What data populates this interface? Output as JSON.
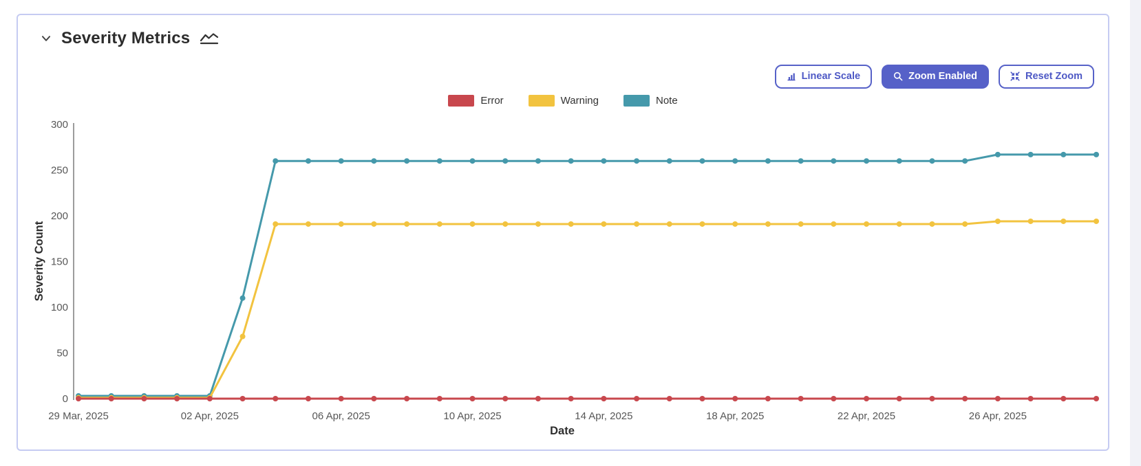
{
  "header": {
    "title": "Severity Metrics"
  },
  "toolbar": {
    "buttons": [
      {
        "label": "Linear Scale",
        "active": false
      },
      {
        "label": "Zoom Enabled",
        "active": true
      },
      {
        "label": "Reset Zoom",
        "active": false
      }
    ]
  },
  "colors": {
    "accent": "#5661c8",
    "card_border": "#c5cbf2",
    "axis_line": "#7b7b7b",
    "tick_text": "#575757",
    "error": "#c8474d",
    "warning": "#f2c33f",
    "note": "#4599ab"
  },
  "chart_data": {
    "type": "line",
    "title": "Severity Metrics",
    "xlabel": "Date",
    "ylabel": "Severity Count",
    "ylim": [
      0,
      300
    ],
    "yticks": [
      0,
      50,
      100,
      150,
      200,
      250,
      300
    ],
    "grid": false,
    "legend_position": "top-center",
    "markers": true,
    "x": [
      "2025-03-29",
      "2025-03-30",
      "2025-03-31",
      "2025-04-01",
      "2025-04-02",
      "2025-04-03",
      "2025-04-04",
      "2025-04-05",
      "2025-04-06",
      "2025-04-07",
      "2025-04-08",
      "2025-04-09",
      "2025-04-10",
      "2025-04-11",
      "2025-04-12",
      "2025-04-13",
      "2025-04-14",
      "2025-04-15",
      "2025-04-16",
      "2025-04-17",
      "2025-04-18",
      "2025-04-19",
      "2025-04-20",
      "2025-04-21",
      "2025-04-22",
      "2025-04-23",
      "2025-04-24",
      "2025-04-25",
      "2025-04-26",
      "2025-04-27",
      "2025-04-28",
      "2025-04-29"
    ],
    "x_ticks": [
      {
        "day_index": 0,
        "label": "29 Mar, 2025"
      },
      {
        "day_index": 4,
        "label": "02 Apr, 2025"
      },
      {
        "day_index": 8,
        "label": "06 Apr, 2025"
      },
      {
        "day_index": 12,
        "label": "10 Apr, 2025"
      },
      {
        "day_index": 16,
        "label": "14 Apr, 2025"
      },
      {
        "day_index": 20,
        "label": "18 Apr, 2025"
      },
      {
        "day_index": 24,
        "label": "22 Apr, 2025"
      },
      {
        "day_index": 28,
        "label": "26 Apr, 2025"
      }
    ],
    "series": [
      {
        "name": "Error",
        "color": "#c8474d",
        "values": [
          0,
          0,
          0,
          0,
          0,
          0,
          0,
          0,
          0,
          0,
          0,
          0,
          0,
          0,
          0,
          0,
          0,
          0,
          0,
          0,
          0,
          0,
          0,
          0,
          0,
          0,
          0,
          0,
          0,
          0,
          0,
          0
        ]
      },
      {
        "name": "Warning",
        "color": "#f2c33f",
        "values": [
          1,
          1,
          1,
          1,
          1,
          68,
          191,
          191,
          191,
          191,
          191,
          191,
          191,
          191,
          191,
          191,
          191,
          191,
          191,
          191,
          191,
          191,
          191,
          191,
          191,
          191,
          191,
          191,
          194,
          194,
          194,
          194
        ]
      },
      {
        "name": "Note",
        "color": "#4599ab",
        "values": [
          3,
          3,
          3,
          3,
          3,
          110,
          260,
          260,
          260,
          260,
          260,
          260,
          260,
          260,
          260,
          260,
          260,
          260,
          260,
          260,
          260,
          260,
          260,
          260,
          260,
          260,
          260,
          260,
          267,
          267,
          267,
          267
        ]
      }
    ]
  }
}
